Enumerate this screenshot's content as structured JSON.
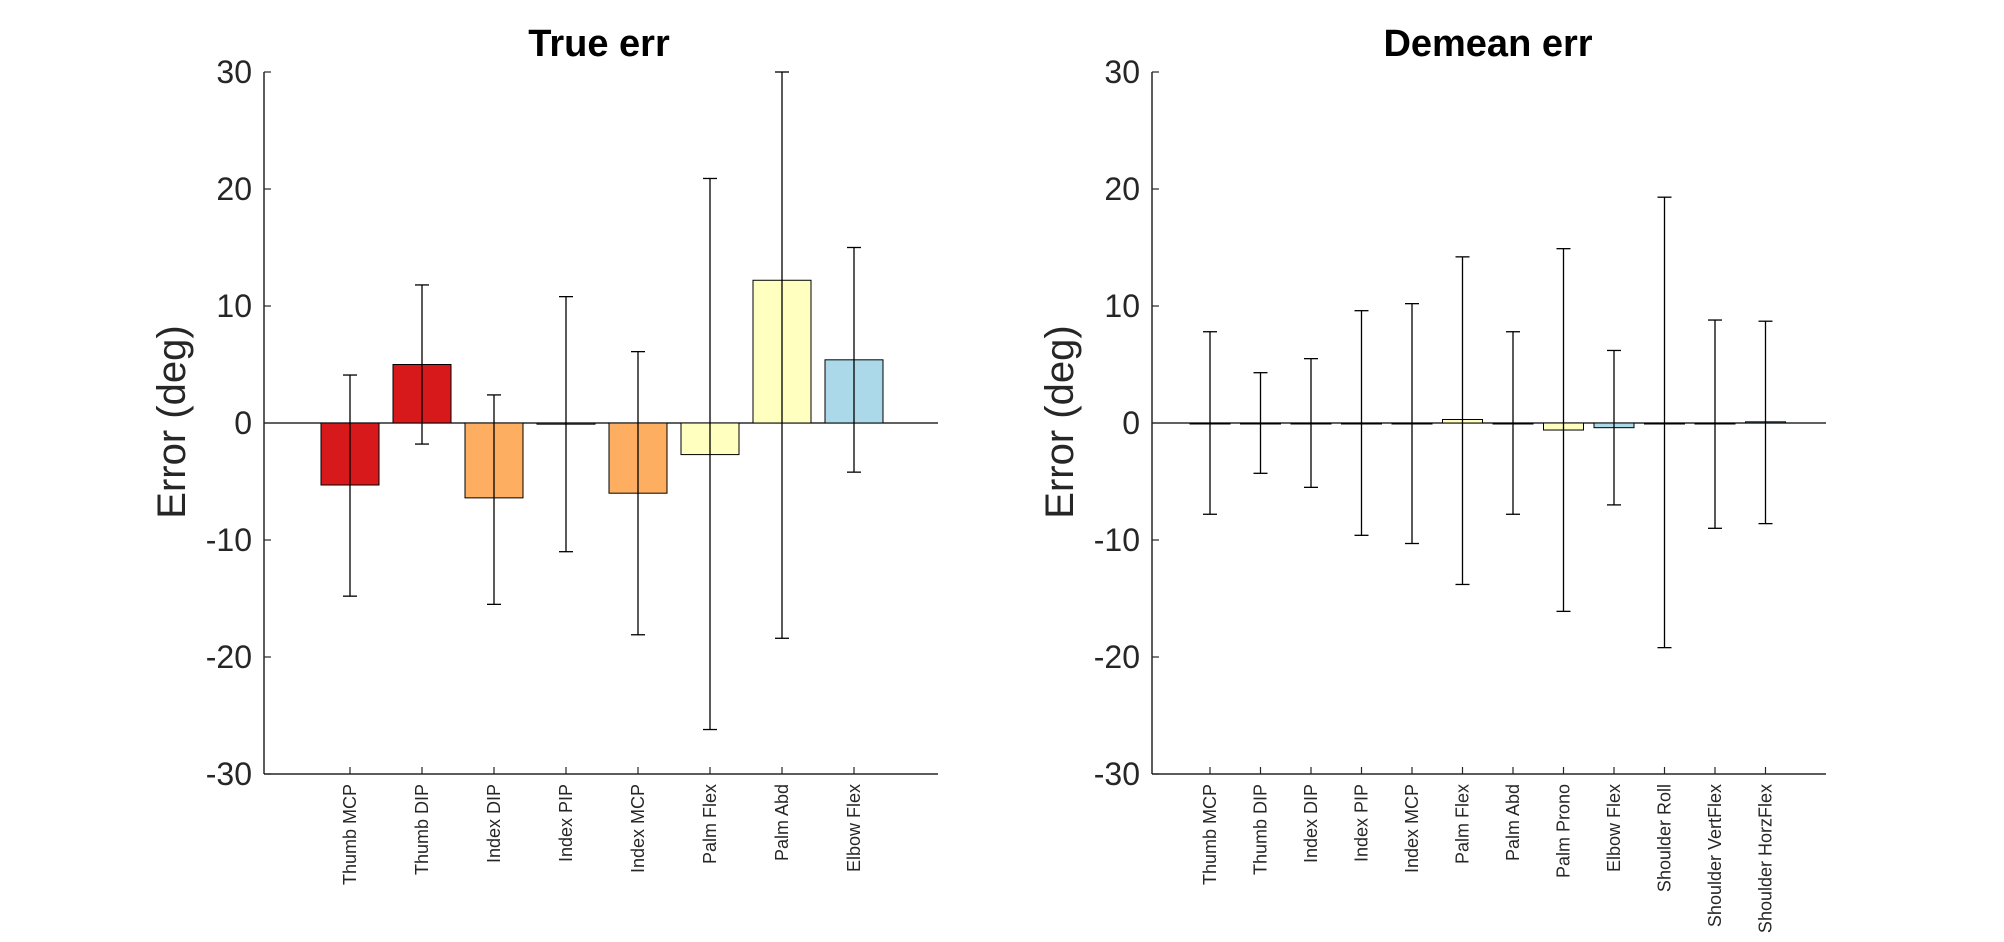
{
  "chart_data": [
    {
      "type": "bar",
      "title": "True err",
      "ylabel": "Error (deg)",
      "ylim": [
        -30,
        30
      ],
      "yticks": [
        "30",
        "20",
        "10",
        "0",
        "-10",
        "-20",
        "-30"
      ],
      "categories": [
        "Thumb MCP",
        "Thumb DIP",
        "Index DIP",
        "Index PIP",
        "Index MCP",
        "Palm Flex",
        "Palm Abd",
        "Elbow Flex"
      ],
      "values": [
        -5.3,
        5.0,
        -6.4,
        -0.1,
        -6.0,
        -2.7,
        12.2,
        5.4
      ],
      "error_low": [
        -14.8,
        -1.8,
        -15.5,
        -11.0,
        -18.1,
        -26.2,
        -18.4,
        -4.2
      ],
      "error_high": [
        4.1,
        11.8,
        2.4,
        10.8,
        6.1,
        20.9,
        30.0,
        15.0
      ],
      "colors": [
        "#d7191c",
        "#d7191c",
        "#fdae61",
        "#fdae61",
        "#fdae61",
        "#ffffbf",
        "#ffffbf",
        "#abd9e9"
      ],
      "grid": false,
      "legend": "none"
    },
    {
      "type": "bar",
      "title": "Demean err",
      "ylabel": "Error (deg)",
      "ylim": [
        -30,
        30
      ],
      "yticks": [
        "30",
        "20",
        "10",
        "0",
        "-10",
        "-20",
        "-30"
      ],
      "categories": [
        "Thumb MCP",
        "Thumb DIP",
        "Index DIP",
        "Index PIP",
        "Index MCP",
        "Palm Flex",
        "Palm Abd",
        "Palm Prono",
        "Elbow Flex",
        "Shoulder Roll",
        "Shoulder VertFlex",
        "Shoulder HorzFlex"
      ],
      "values": [
        0.0,
        0.0,
        0.0,
        0.0,
        0.0,
        0.3,
        0.0,
        -0.6,
        -0.4,
        0.0,
        0.0,
        0.1
      ],
      "error_low": [
        -7.8,
        -4.3,
        -5.5,
        -9.6,
        -10.3,
        -13.8,
        -7.8,
        -16.1,
        -7.0,
        -19.2,
        -9.0,
        -8.6
      ],
      "error_high": [
        7.8,
        4.3,
        5.5,
        9.6,
        10.2,
        14.2,
        7.8,
        14.9,
        6.2,
        19.3,
        8.8,
        8.7
      ],
      "colors": [
        "#d7191c",
        "#d7191c",
        "#fdae61",
        "#fdae61",
        "#fdae61",
        "#ffffbf",
        "#ffffbf",
        "#ffffbf",
        "#abd9e9",
        "#abd9e9",
        "#abd9e9",
        "#abd9e9"
      ],
      "grid": false,
      "legend": "none"
    }
  ]
}
